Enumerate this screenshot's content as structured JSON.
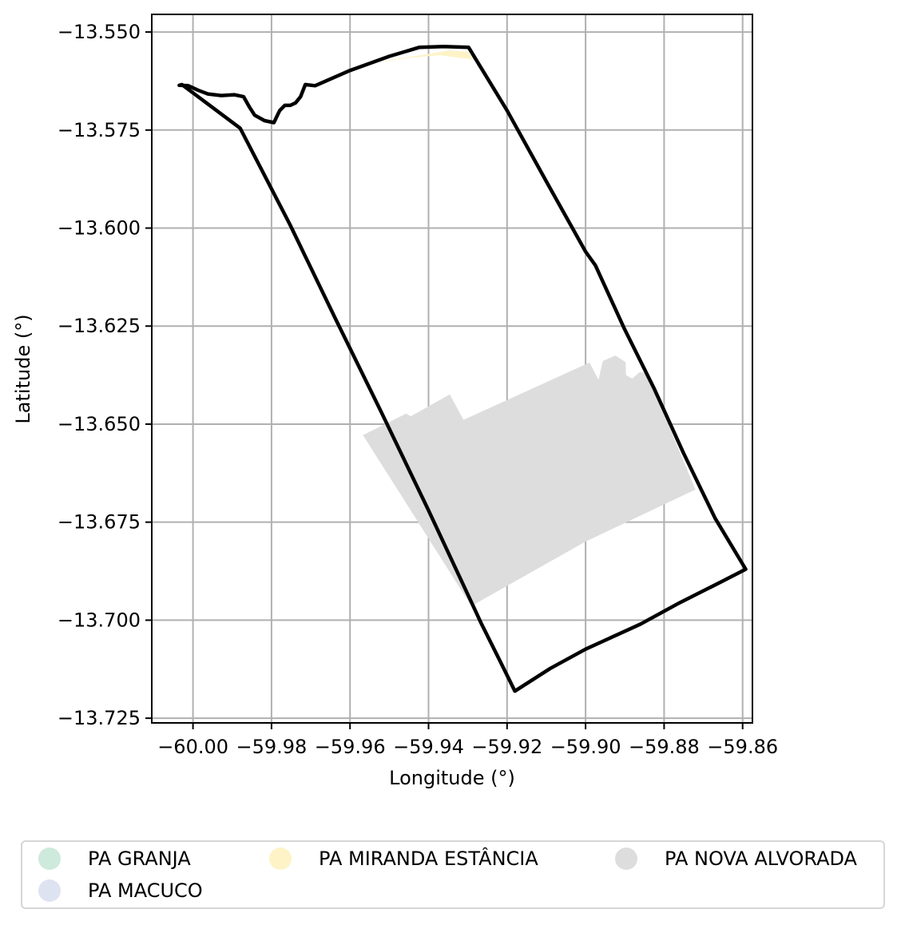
{
  "chart_data": {
    "type": "map",
    "title": "",
    "xlabel": "Longitude (°)",
    "ylabel": "Latitude (°)",
    "xlim": [
      -60.0105,
      -59.8575
    ],
    "ylim": [
      -13.7262,
      -13.5455
    ],
    "grid": true,
    "x_ticks": [
      -60.0,
      -59.98,
      -59.96,
      -59.94,
      -59.92,
      -59.9,
      -59.88,
      -59.86
    ],
    "x_tick_labels": [
      "−60.00",
      "−59.98",
      "−59.96",
      "−59.94",
      "−59.92",
      "−59.90",
      "−59.88",
      "−59.86"
    ],
    "y_ticks": [
      -13.55,
      -13.575,
      -13.6,
      -13.625,
      -13.65,
      -13.675,
      -13.7,
      -13.725
    ],
    "y_tick_labels": [
      "−13.550",
      "−13.575",
      "−13.600",
      "−13.625",
      "−13.650",
      "−13.675",
      "−13.700",
      "−13.725"
    ],
    "legend_position": "bottom",
    "legend": [
      {
        "name": "PA GRANJA",
        "color": "#cdeadc"
      },
      {
        "name": "PA MACUCO",
        "color": "#dde3f0"
      },
      {
        "name": "PA MIRANDA ESTÂNCIA",
        "color": "#fdf3c7"
      },
      {
        "name": "PA NOVA ALVORADA",
        "color": "#dddddd"
      }
    ],
    "areas": [
      {
        "name": "PA MIRANDA ESTÂNCIA",
        "color": "#fdf3c7",
        "polygon": [
          [
            -59.9554,
            -13.5581
          ],
          [
            -59.9473,
            -13.5567
          ],
          [
            -59.9406,
            -13.5557
          ],
          [
            -59.935,
            -13.5547
          ],
          [
            -59.93,
            -13.555
          ],
          [
            -59.9284,
            -13.5571
          ],
          [
            -59.9295,
            -13.5569
          ],
          [
            -59.9372,
            -13.5559
          ],
          [
            -59.945,
            -13.5566
          ]
        ]
      },
      {
        "name": "PA NOVA ALVORADA",
        "color": "#dddddd",
        "polygon": [
          [
            -59.9567,
            -13.6528
          ],
          [
            -59.9457,
            -13.6473
          ],
          [
            -59.9445,
            -13.648
          ],
          [
            -59.9346,
            -13.6424
          ],
          [
            -59.9311,
            -13.6489
          ],
          [
            -59.899,
            -13.6343
          ],
          [
            -59.8967,
            -13.6387
          ],
          [
            -59.8956,
            -13.6339
          ],
          [
            -59.8924,
            -13.6325
          ],
          [
            -59.8898,
            -13.6342
          ],
          [
            -59.8897,
            -13.6375
          ],
          [
            -59.8881,
            -13.6384
          ],
          [
            -59.8862,
            -13.6367
          ],
          [
            -59.8844,
            -13.637
          ],
          [
            -59.872,
            -13.6667
          ],
          [
            -59.9001,
            -13.68
          ],
          [
            -59.9291,
            -13.6964
          ]
        ]
      }
    ],
    "boundary": [
      [
        -60.0035,
        -13.5636
      ],
      [
        -60.0012,
        -13.5637
      ],
      [
        -59.9986,
        -13.5649
      ],
      [
        -59.9962,
        -13.5658
      ],
      [
        -59.9928,
        -13.5662
      ],
      [
        -59.9895,
        -13.566
      ],
      [
        -59.9871,
        -13.5665
      ],
      [
        -59.9857,
        -13.569
      ],
      [
        -59.9843,
        -13.5712
      ],
      [
        -59.9818,
        -13.5726
      ],
      [
        -59.9794,
        -13.5731
      ],
      [
        -59.9779,
        -13.57
      ],
      [
        -59.9766,
        -13.5687
      ],
      [
        -59.9752,
        -13.5687
      ],
      [
        -59.9739,
        -13.5681
      ],
      [
        -59.9726,
        -13.5665
      ],
      [
        -59.9714,
        -13.5634
      ],
      [
        -59.9689,
        -13.5637
      ],
      [
        -59.96,
        -13.5598
      ],
      [
        -59.95,
        -13.5562
      ],
      [
        -59.9423,
        -13.5539
      ],
      [
        -59.9362,
        -13.5537
      ],
      [
        -59.9298,
        -13.5539
      ],
      [
        -59.92,
        -13.57
      ],
      [
        -59.9095,
        -13.589
      ],
      [
        -59.9,
        -13.606
      ],
      [
        -59.8975,
        -13.6095
      ],
      [
        -59.8902,
        -13.6255
      ],
      [
        -59.8825,
        -13.641
      ],
      [
        -59.875,
        -13.6575
      ],
      [
        -59.867,
        -13.674
      ],
      [
        -59.8592,
        -13.687
      ],
      [
        -59.865,
        -13.69
      ],
      [
        -59.8765,
        -13.6958
      ],
      [
        -59.886,
        -13.701
      ],
      [
        -59.9,
        -13.7074
      ],
      [
        -59.909,
        -13.7123
      ],
      [
        -59.918,
        -13.7181
      ],
      [
        -59.922,
        -13.71
      ],
      [
        -59.9265,
        -13.701
      ],
      [
        -59.9295,
        -13.6945
      ],
      [
        -59.94,
        -13.672
      ],
      [
        -59.952,
        -13.647
      ],
      [
        -59.964,
        -13.6225
      ],
      [
        -59.9753,
        -13.5991
      ],
      [
        -59.988,
        -13.5745
      ],
      [
        -60.0028,
        -13.5634
      ]
    ],
    "boundary_color": "#000000"
  }
}
